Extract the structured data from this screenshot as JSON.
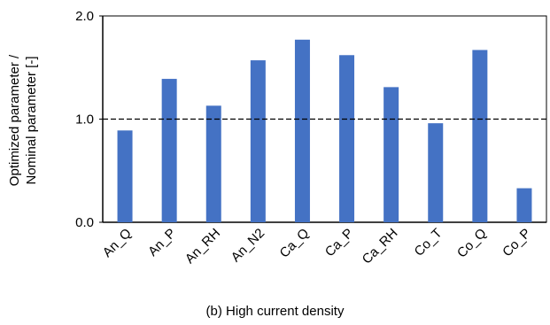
{
  "chart_data": {
    "type": "bar",
    "categories": [
      "An_Q",
      "An_P",
      "An_RH",
      "An_N2",
      "Ca_Q",
      "Ca_P",
      "Ca_RH",
      "Co_T",
      "Co_Q",
      "Co_P"
    ],
    "values": [
      0.89,
      1.39,
      1.13,
      1.57,
      1.77,
      1.62,
      1.31,
      0.96,
      1.67,
      0.33
    ],
    "title": "",
    "xlabel": "(b) High current density",
    "ylabel": [
      "Optimized parameter /",
      "Nominal parameter [-]"
    ],
    "ylim": [
      0,
      2.0
    ],
    "yticks": [
      "0.0",
      "1.0",
      "2.0"
    ],
    "reference_line": 1.0,
    "bar_color": "#4472c4",
    "grid": false,
    "legend": "none"
  }
}
